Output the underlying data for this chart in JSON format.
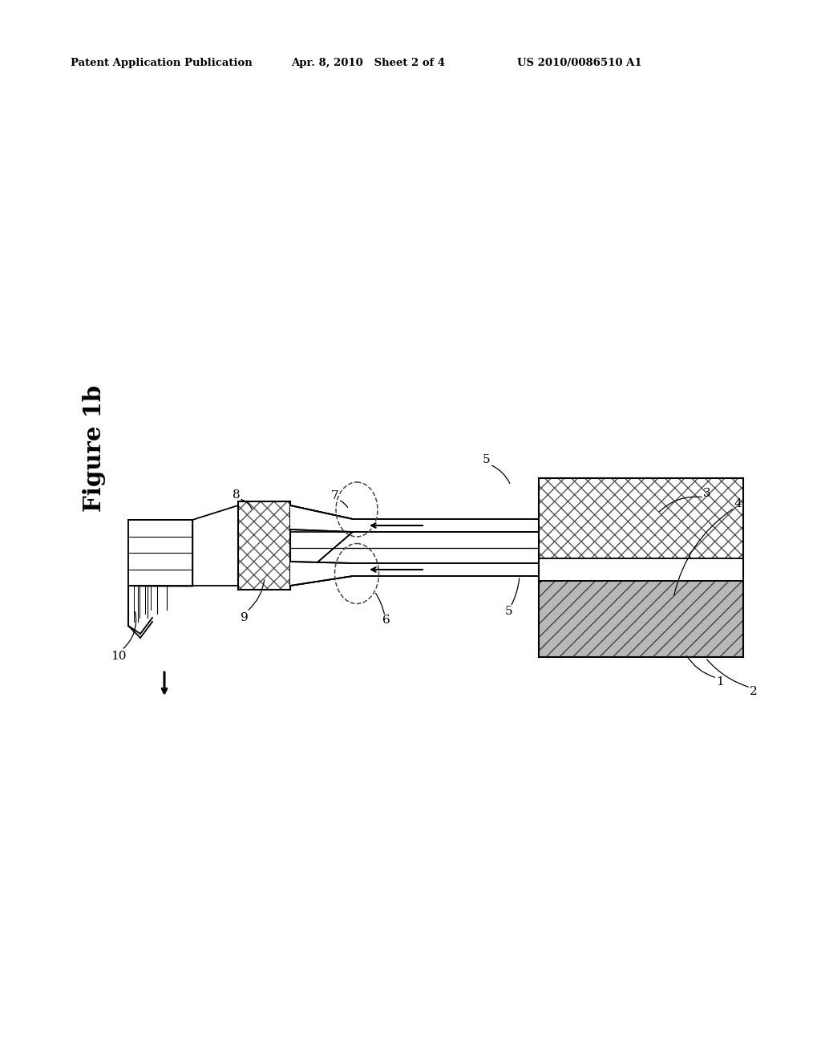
{
  "bg_color": "#ffffff",
  "header_left": "Patent Application Publication",
  "header_mid": "Apr. 8, 2010   Sheet 2 of 4",
  "header_right": "US 2010/0086510 A1",
  "figure_label": "Figure 1b"
}
